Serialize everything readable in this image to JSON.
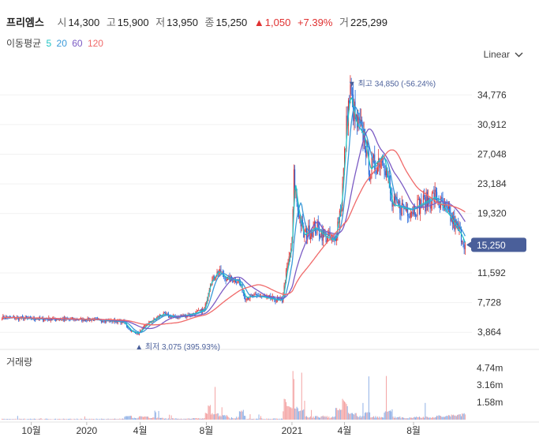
{
  "header": {
    "name": "프리엠스",
    "open_label": "시",
    "open": "14,300",
    "high_label": "고",
    "high": "15,900",
    "low_label": "저",
    "low": "13,950",
    "close_label": "종",
    "close": "15,250",
    "change_arrow": "▲",
    "change": "1,050",
    "change_pct": "+7.39%",
    "volume_label": "거",
    "volume": "225,299"
  },
  "ma_legend": {
    "title": "이동평균",
    "periods": [
      {
        "label": "5",
        "color": "#20c4c4"
      },
      {
        "label": "20",
        "color": "#3a9ad9"
      },
      {
        "label": "60",
        "color": "#7b5bc4"
      },
      {
        "label": "120",
        "color": "#f06a6a"
      }
    ]
  },
  "scale_toggle": {
    "label": "Linear",
    "icon": "chevron-down-icon"
  },
  "volume_panel": {
    "title": "거래량"
  },
  "colors": {
    "up": "#e03131",
    "down": "#1c62d8",
    "price_tag": "#4a5f9a"
  },
  "chart_data": {
    "type": "candlestick",
    "y_ticks": [
      "34,776",
      "30,912",
      "27,048",
      "23,184",
      "19,320",
      "11,592",
      "7,728",
      "3,864"
    ],
    "y_tick_values": [
      34776,
      30912,
      27048,
      23184,
      19320,
      11592,
      7728,
      3864
    ],
    "ylim": [
      1932,
      38708
    ],
    "x_ticks": [
      "10월",
      "2020",
      "4월",
      "8월",
      "2021",
      "4월",
      "8월"
    ],
    "current_price": {
      "label": "15,250",
      "value": 15250
    },
    "max_annotation": {
      "label": "최고 34,850 (-56.24%)",
      "value": 34850
    },
    "min_annotation": {
      "label": "최저 3,075 (395.93%)",
      "value": 3075
    },
    "volume_ticks": [
      "4.74m",
      "3.16m",
      "1.58m"
    ],
    "volume_tick_values": [
      4740000,
      3160000,
      1580000
    ],
    "anchors": [
      [
        0,
        5800
      ],
      [
        40,
        5600
      ],
      [
        95,
        5500
      ],
      [
        118,
        5300
      ],
      [
        125,
        5200
      ],
      [
        133,
        4000
      ],
      [
        140,
        3700
      ],
      [
        150,
        5000
      ],
      [
        165,
        6200
      ],
      [
        178,
        5800
      ],
      [
        195,
        6200
      ],
      [
        208,
        6800
      ],
      [
        214,
        10200
      ],
      [
        222,
        11800
      ],
      [
        232,
        10800
      ],
      [
        243,
        10600
      ],
      [
        250,
        8400
      ],
      [
        263,
        8600
      ],
      [
        278,
        8200
      ],
      [
        288,
        8000
      ],
      [
        292,
        11500
      ],
      [
        298,
        15500
      ],
      [
        300,
        24000
      ],
      [
        304,
        20000
      ],
      [
        310,
        16500
      ],
      [
        322,
        17500
      ],
      [
        334,
        16200
      ],
      [
        342,
        15800
      ],
      [
        349,
        21000
      ],
      [
        355,
        32500
      ],
      [
        358,
        34850
      ],
      [
        364,
        31000
      ],
      [
        372,
        29500
      ],
      [
        378,
        25000
      ],
      [
        392,
        27000
      ],
      [
        401,
        20500
      ],
      [
        420,
        19800
      ],
      [
        445,
        21500
      ],
      [
        460,
        19000
      ],
      [
        472,
        16500
      ],
      [
        476,
        15250
      ]
    ],
    "series": [
      {
        "name": "5",
        "color": "#20c4c4",
        "lag": 1
      },
      {
        "name": "20",
        "color": "#3a9ad9",
        "lag": 4
      },
      {
        "name": "60",
        "color": "#7b5bc4",
        "lag": 13
      },
      {
        "name": "120",
        "color": "#f06a6a",
        "lag": 26
      }
    ]
  }
}
